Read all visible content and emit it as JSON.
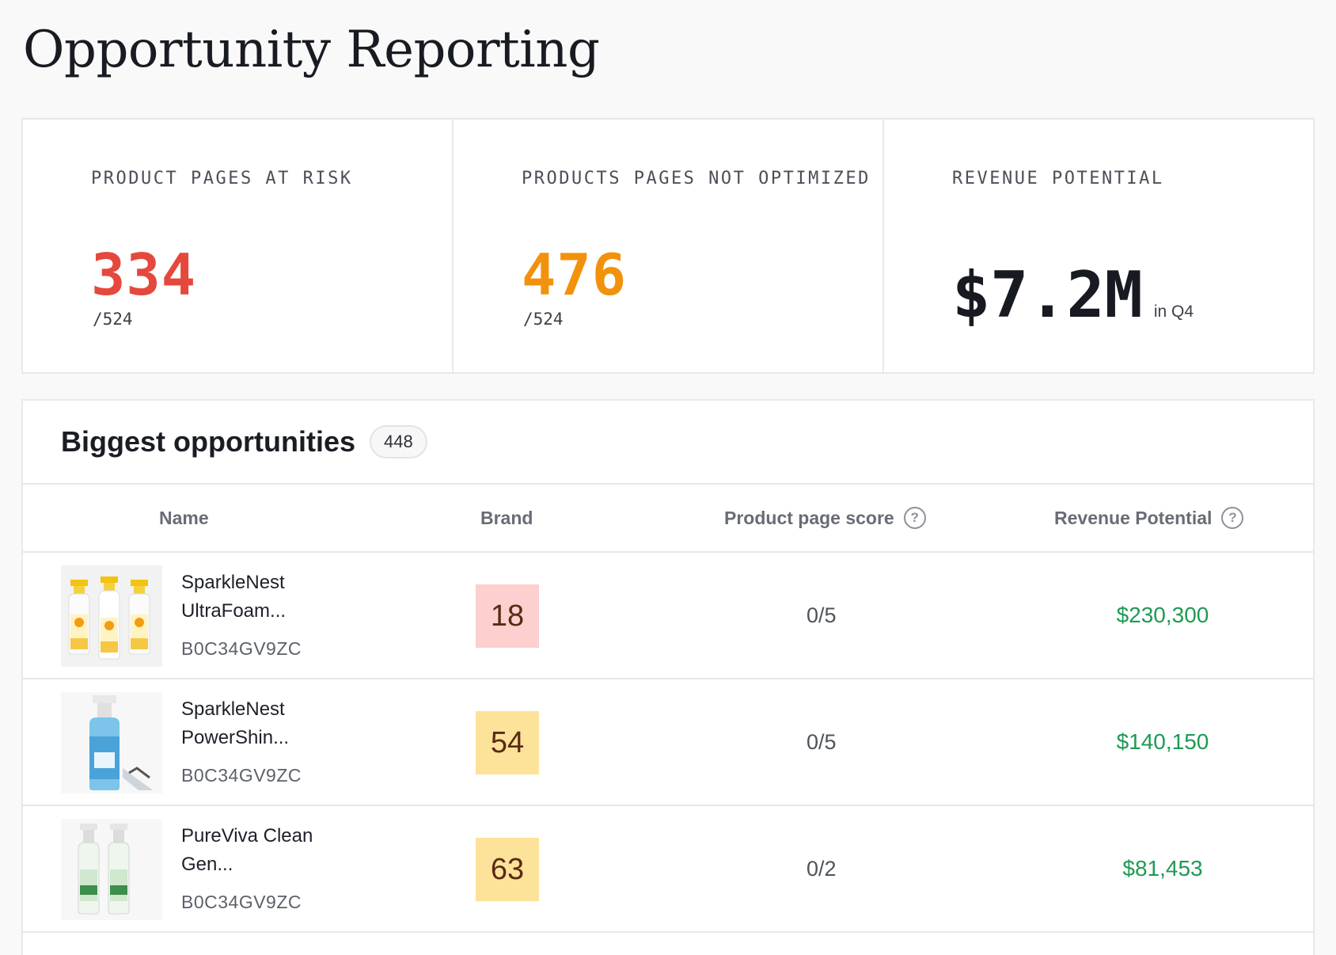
{
  "page": {
    "title": "Opportunity Reporting"
  },
  "stats": [
    {
      "label": "PRODUCT PAGES AT RISK",
      "value": "334",
      "total": "/524"
    },
    {
      "label": "PRODUCTS PAGES NOT OPTIMIZED",
      "value": "476",
      "total": "/524"
    },
    {
      "label": "REVENUE POTENTIAL",
      "value": "$7.2M",
      "suffix": "in Q4"
    }
  ],
  "opportunities": {
    "title": "Biggest opportunities",
    "count": "448",
    "columns": {
      "name": "Name",
      "brand": "Brand",
      "page_score": "Product page score",
      "revenue": "Revenue Potential"
    },
    "rows": [
      {
        "name": "SparkleNest UltraFoam...",
        "sku": "B0C34GV9ZC",
        "brand_score": "18",
        "page_score": "0/5",
        "revenue": "$230,300",
        "thumb_icon": "yellow-spray-bottles-icon"
      },
      {
        "name": "SparkleNest PowerShin...",
        "sku": "B0C34GV9ZC",
        "brand_score": "54",
        "page_score": "0/5",
        "revenue": "$140,150",
        "thumb_icon": "glass-cleaner-bottle-icon"
      },
      {
        "name": "PureViva Clean Gen...",
        "sku": "B0C34GV9ZC",
        "brand_score": "63",
        "page_score": "0/2",
        "revenue": "$81,453",
        "thumb_icon": "green-spray-bottles-icon"
      }
    ]
  },
  "colors": {
    "risk": "#e5483d",
    "not_optimized": "#f2920c",
    "revenue": "#1e9a55",
    "score_red_bg": "#fdcfcf",
    "score_yellow_bg": "#fde29a"
  }
}
